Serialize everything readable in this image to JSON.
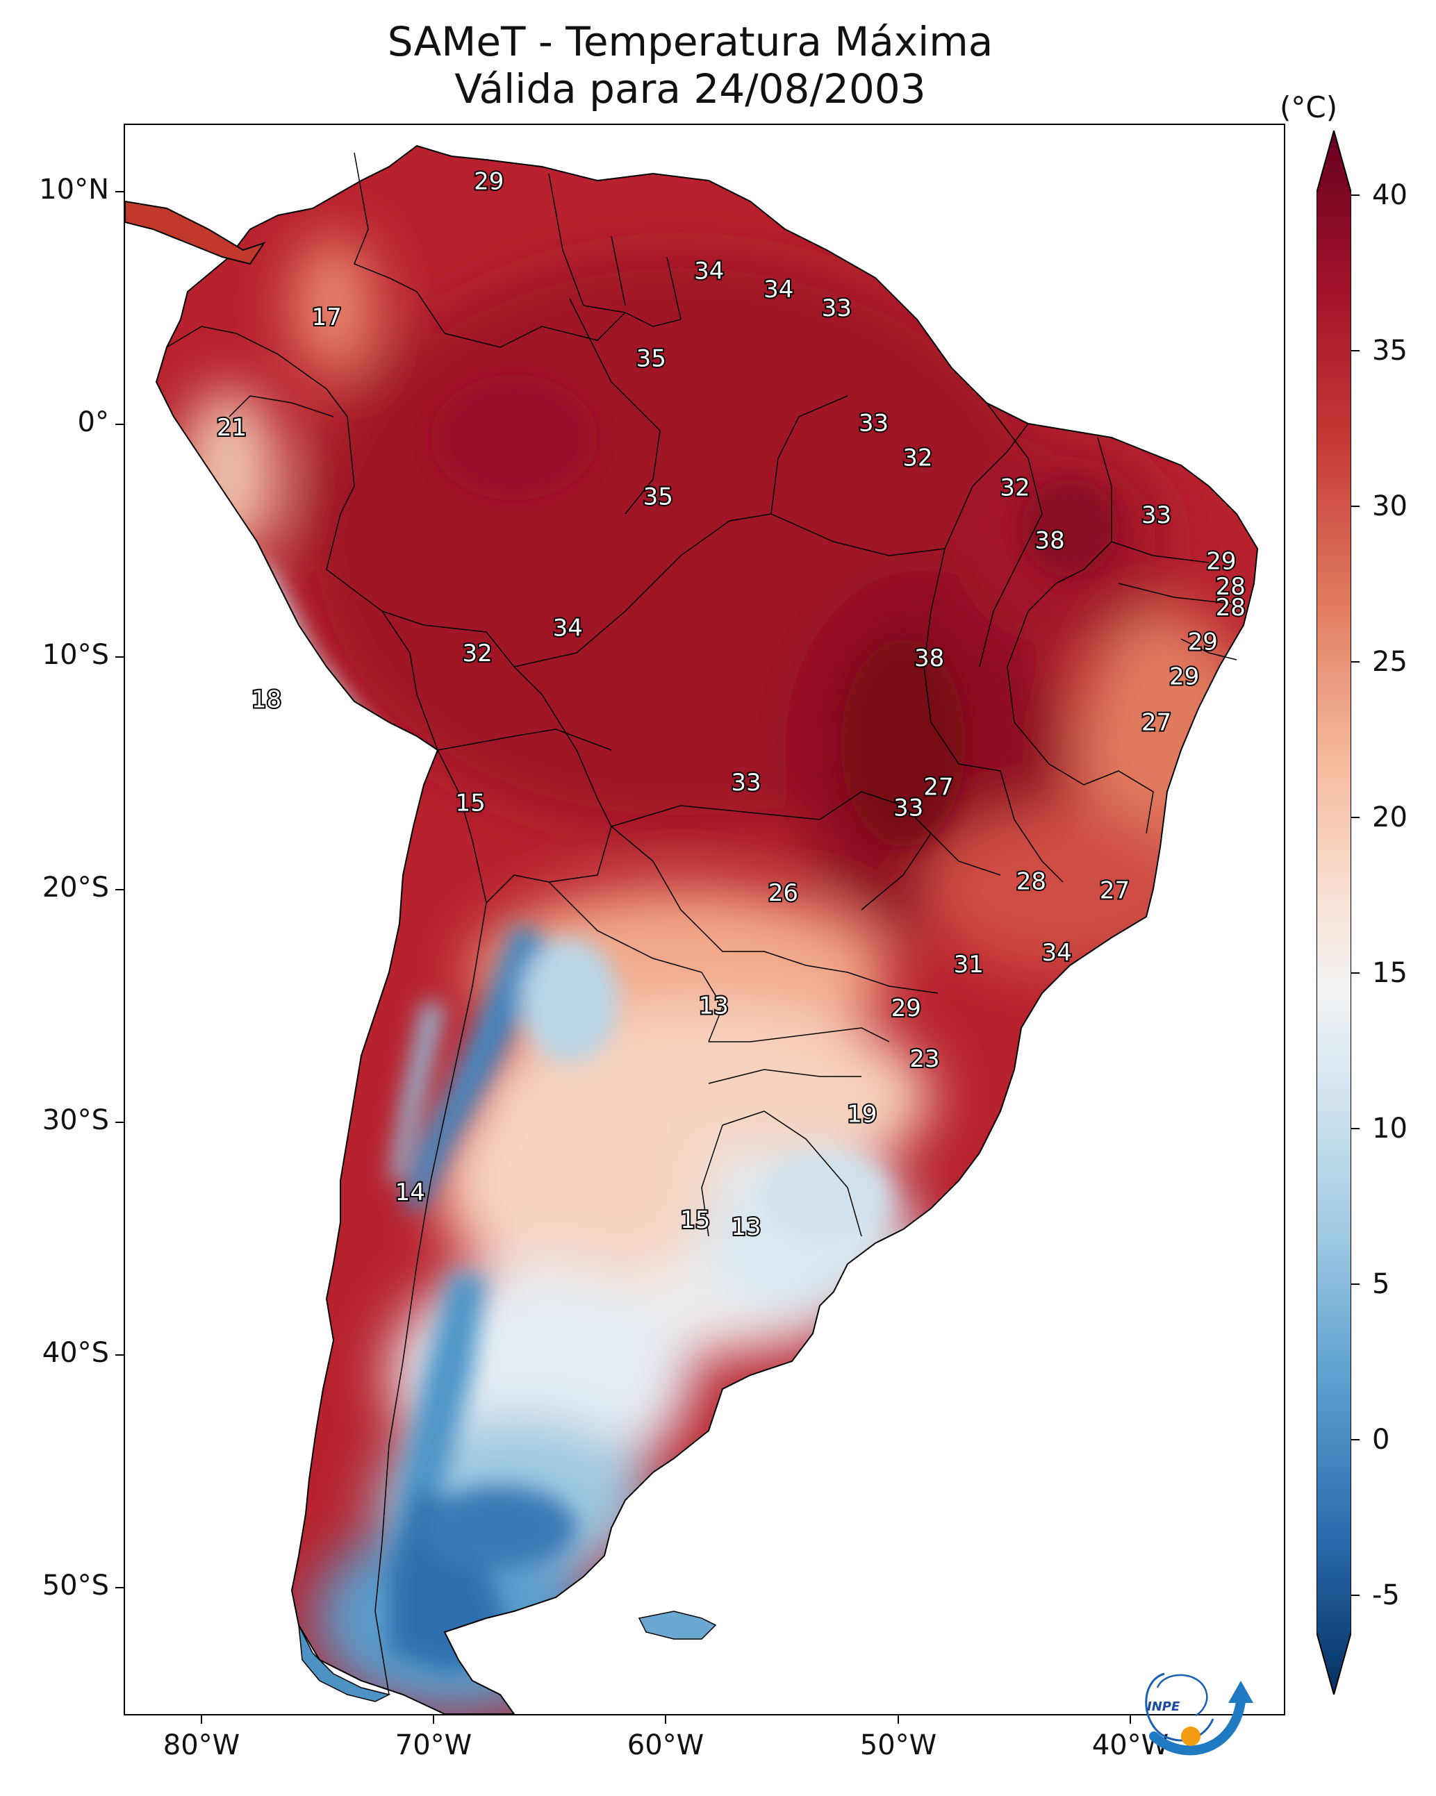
{
  "title": {
    "line1": "SAMeT - Temperatura Máxima",
    "line2": "Válida para 24/08/2003"
  },
  "axes": {
    "lat_labels": [
      "10°N",
      "0°",
      "10°S",
      "20°S",
      "30°S",
      "40°S",
      "50°S"
    ],
    "lon_labels": [
      "80°W",
      "70°W",
      "60°W",
      "50°W",
      "40°W"
    ]
  },
  "colorbar": {
    "unit": "(°C)",
    "ticks": [
      "40",
      "35",
      "30",
      "25",
      "20",
      "15",
      "10",
      "5",
      "0",
      "-5"
    ],
    "colors": [
      "#67001f",
      "#b2182b",
      "#d6604d",
      "#f4a582",
      "#fddbc7",
      "#f7f7f7",
      "#d1e5f0",
      "#92c5de",
      "#4393c3",
      "#2166ac",
      "#053061"
    ]
  },
  "logo": {
    "text": "INPE"
  },
  "chart_data": {
    "type": "map",
    "title": "SAMeT - Temperatura Máxima Válida para 24/08/2003",
    "colorbar_label": "(°C)",
    "colorbar_range": [
      -5,
      40
    ],
    "lon_range": [
      -83,
      -33
    ],
    "lat_range": [
      -56,
      13
    ],
    "station_values": [
      {
        "value": "29",
        "lon": -67.3,
        "lat": 10.5
      },
      {
        "value": "34",
        "lon": -57.8,
        "lat": 6.6
      },
      {
        "value": "34",
        "lon": -54.8,
        "lat": 5.8
      },
      {
        "value": "33",
        "lon": -52.3,
        "lat": 5.0
      },
      {
        "value": "17",
        "lon": -74.3,
        "lat": 4.6
      },
      {
        "value": "35",
        "lon": -60.3,
        "lat": 2.8
      },
      {
        "value": "21",
        "lon": -78.4,
        "lat": -0.2
      },
      {
        "value": "33",
        "lon": -50.7,
        "lat": 0.0
      },
      {
        "value": "32",
        "lon": -48.8,
        "lat": -1.5
      },
      {
        "value": "32",
        "lon": -44.6,
        "lat": -2.8
      },
      {
        "value": "35",
        "lon": -60.0,
        "lat": -3.2
      },
      {
        "value": "33",
        "lon": -38.5,
        "lat": -4.0
      },
      {
        "value": "38",
        "lon": -43.1,
        "lat": -5.1
      },
      {
        "value": "29",
        "lon": -35.7,
        "lat": -6.0
      },
      {
        "value": "28",
        "lon": -35.3,
        "lat": -7.1
      },
      {
        "value": "28",
        "lon": -35.3,
        "lat": -8.0
      },
      {
        "value": "34",
        "lon": -63.9,
        "lat": -8.9
      },
      {
        "value": "32",
        "lon": -67.8,
        "lat": -10.0
      },
      {
        "value": "38",
        "lon": -48.3,
        "lat": -10.2
      },
      {
        "value": "29",
        "lon": -36.5,
        "lat": -9.5
      },
      {
        "value": "29",
        "lon": -37.3,
        "lat": -11.0
      },
      {
        "value": "18",
        "lon": -76.9,
        "lat": -12.0
      },
      {
        "value": "27",
        "lon": -38.5,
        "lat": -13.0
      },
      {
        "value": "33",
        "lon": -56.2,
        "lat": -15.6
      },
      {
        "value": "27",
        "lon": -47.9,
        "lat": -15.8
      },
      {
        "value": "33",
        "lon": -49.2,
        "lat": -16.7
      },
      {
        "value": "15",
        "lon": -68.1,
        "lat": -16.5
      },
      {
        "value": "28",
        "lon": -43.9,
        "lat": -19.9
      },
      {
        "value": "27",
        "lon": -40.3,
        "lat": -20.3
      },
      {
        "value": "26",
        "lon": -54.6,
        "lat": -20.4
      },
      {
        "value": "34",
        "lon": -42.8,
        "lat": -23.0
      },
      {
        "value": "31",
        "lon": -46.6,
        "lat": -23.5
      },
      {
        "value": "13",
        "lon": -57.6,
        "lat": -25.3
      },
      {
        "value": "29",
        "lon": -49.3,
        "lat": -25.4
      },
      {
        "value": "23",
        "lon": -48.5,
        "lat": -27.6
      },
      {
        "value": "19",
        "lon": -51.2,
        "lat": -30.0
      },
      {
        "value": "14",
        "lon": -70.7,
        "lat": -33.4
      },
      {
        "value": "15",
        "lon": -58.4,
        "lat": -34.6
      },
      {
        "value": "13",
        "lon": -56.2,
        "lat": -34.9
      }
    ]
  }
}
